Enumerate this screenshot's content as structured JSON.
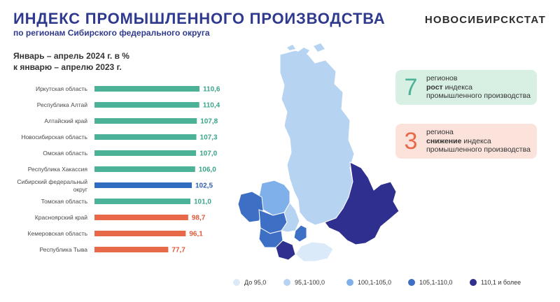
{
  "header": {
    "title": "ИНДЕКС ПРОМЫШЛЕННОГО ПРОИЗВОДСТВА",
    "subtitle": "по регионам Сибирского федерального округа",
    "brand": "НОВОСИБИРСКСТАТ"
  },
  "period": {
    "line1": "Январь – апрель 2024 г. в %",
    "line2": "к январю – апрелю 2023 г."
  },
  "chart_data": {
    "type": "bar",
    "orientation": "horizontal",
    "categories": [
      [
        "Иркутская область"
      ],
      [
        "Республика Алтай"
      ],
      [
        "Алтайский край"
      ],
      [
        "Новосибирская область"
      ],
      [
        "Омская область"
      ],
      [
        "Республика Хакассия"
      ],
      [
        "Сибирский федеральный",
        "округ"
      ],
      [
        "Томская область"
      ],
      [
        "Красноярский край"
      ],
      [
        "Кемеровская область"
      ],
      [
        "Республика Тыва"
      ]
    ],
    "values": [
      110.6,
      110.4,
      107.8,
      107.3,
      107.0,
      106.0,
      102.5,
      101.0,
      98.7,
      96.1,
      77.7
    ],
    "value_labels": [
      "110,6",
      "110,4",
      "107,8",
      "107,3",
      "107,0",
      "106,0",
      "102,5",
      "101,0",
      "98,7",
      "96,1",
      "77,7"
    ],
    "bar_colors": [
      "#4bb298",
      "#4bb298",
      "#4bb298",
      "#4bb298",
      "#4bb298",
      "#4bb298",
      "#2f6bbf",
      "#4bb298",
      "#e8694a",
      "#e8694a",
      "#e8694a"
    ],
    "label_colors": [
      "#3aa58a",
      "#3aa58a",
      "#3aa58a",
      "#3aa58a",
      "#3aa58a",
      "#3aa58a",
      "#2f5fb0",
      "#3aa58a",
      "#e05a3a",
      "#e05a3a",
      "#e05a3a"
    ],
    "xlim": [
      0,
      110.6
    ],
    "grid": false
  },
  "cards": {
    "growth": {
      "number": "7",
      "line1": "регионов",
      "bold": "рост",
      "line2_rest": " индекса",
      "line3": "промышленного производства"
    },
    "decline": {
      "number": "3",
      "line1": "региона",
      "bold": "снижение",
      "line2_rest": " индекса",
      "line3": "промышленного производства"
    }
  },
  "legend": [
    {
      "label": "До 95,0",
      "color": "#dbeaf8"
    },
    {
      "label": "95,1-100,0",
      "color": "#b7d3f2"
    },
    {
      "label": "100,1-105,0",
      "color": "#7fb0ea"
    },
    {
      "label": "105,1-110,0",
      "color": "#3d6fc4"
    },
    {
      "label": "110,1 и более",
      "color": "#2f2f8f"
    }
  ]
}
